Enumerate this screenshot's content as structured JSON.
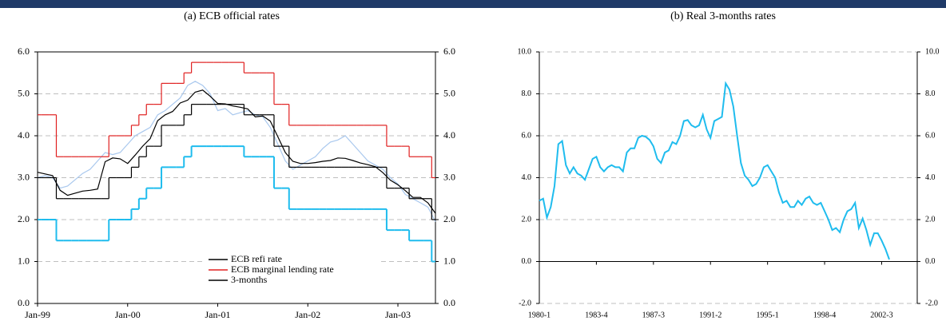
{
  "chart_data": [
    {
      "type": "line",
      "title": "(a)    ECB official rates",
      "categories": [
        "Jan-99",
        null,
        null,
        null,
        null,
        null,
        null,
        null,
        null,
        null,
        null,
        null,
        "Jan-00",
        null,
        null,
        null,
        null,
        null,
        null,
        null,
        null,
        null,
        null,
        null,
        "Jan-01",
        null,
        null,
        null,
        null,
        null,
        null,
        null,
        null,
        null,
        null,
        null,
        "Jan-02",
        null,
        null,
        null,
        null,
        null,
        null,
        null,
        null,
        null,
        null,
        null,
        "Jan-03",
        null,
        null,
        null,
        null,
        null
      ],
      "ylim": [
        0,
        6
      ],
      "yticks": [
        {
          "value": 0,
          "label": "0.0"
        },
        {
          "value": 1,
          "label": "1.0"
        },
        {
          "value": 2,
          "label": "2.0"
        },
        {
          "value": 3,
          "label": "3.0"
        },
        {
          "value": 4,
          "label": "4.0"
        },
        {
          "value": 5,
          "label": "5.0"
        },
        {
          "value": 6,
          "label": "6.0"
        }
      ],
      "grid": true,
      "legend_loc": "lower center",
      "series": [
        {
          "color": "#a9c8ee",
          "values": [
            3.0,
            3.05,
            3.0,
            2.75,
            2.8,
            2.95,
            3.1,
            3.2,
            3.4,
            3.6,
            3.55,
            3.6,
            3.8,
            4.0,
            4.1,
            4.2,
            4.5,
            4.6,
            4.75,
            4.9,
            5.2,
            5.3,
            5.2,
            5.0,
            4.6,
            4.65,
            4.5,
            4.55,
            4.6,
            4.5,
            4.45,
            4.2,
            3.8,
            3.4,
            3.2,
            3.3,
            3.4,
            3.5,
            3.7,
            3.85,
            3.9,
            4.0,
            3.8,
            3.6,
            3.4,
            3.3,
            3.2,
            3.0,
            2.85,
            2.6,
            2.5,
            2.4,
            2.3,
            1.95
          ]
        },
        {
          "color": "#1fbcee",
          "step": true,
          "values": [
            2,
            2,
            2,
            1.5,
            1.5,
            1.5,
            1.5,
            1.5,
            1.5,
            1.5,
            2,
            2,
            2,
            2.25,
            2.5,
            2.75,
            2.75,
            3.25,
            3.25,
            3.25,
            3.5,
            3.75,
            3.75,
            3.75,
            3.75,
            3.75,
            3.75,
            3.75,
            3.5,
            3.5,
            3.5,
            3.5,
            2.75,
            2.75,
            2.25,
            2.25,
            2.25,
            2.25,
            2.25,
            2.25,
            2.25,
            2.25,
            2.25,
            2.25,
            2.25,
            2.25,
            2.25,
            1.75,
            1.75,
            1.75,
            1.5,
            1.5,
            1.5,
            1
          ]
        },
        {
          "name": "ECB refi rate",
          "color": "#000000",
          "step": true,
          "values": [
            3,
            3,
            3,
            2.5,
            2.5,
            2.5,
            2.5,
            2.5,
            2.5,
            2.5,
            3,
            3,
            3,
            3.25,
            3.5,
            3.75,
            3.75,
            4.25,
            4.25,
            4.25,
            4.5,
            4.75,
            4.75,
            4.75,
            4.75,
            4.75,
            4.75,
            4.75,
            4.5,
            4.5,
            4.5,
            4.5,
            3.75,
            3.75,
            3.25,
            3.25,
            3.25,
            3.25,
            3.25,
            3.25,
            3.25,
            3.25,
            3.25,
            3.25,
            3.25,
            3.25,
            3.25,
            2.75,
            2.75,
            2.75,
            2.5,
            2.5,
            2.5,
            2
          ]
        },
        {
          "name": "ECB marginal lending rate",
          "color": "#e02020",
          "step": true,
          "values": [
            4.5,
            4.5,
            4.5,
            3.5,
            3.5,
            3.5,
            3.5,
            3.5,
            3.5,
            3.5,
            4,
            4,
            4,
            4.25,
            4.5,
            4.75,
            4.75,
            5.25,
            5.25,
            5.25,
            5.5,
            5.75,
            5.75,
            5.75,
            5.75,
            5.75,
            5.75,
            5.75,
            5.5,
            5.5,
            5.5,
            5.5,
            4.75,
            4.75,
            4.25,
            4.25,
            4.25,
            4.25,
            4.25,
            4.25,
            4.25,
            4.25,
            4.25,
            4.25,
            4.25,
            4.25,
            4.25,
            3.75,
            3.75,
            3.75,
            3.5,
            3.5,
            3.5,
            3
          ]
        },
        {
          "name": "3-months",
          "color": "#000000",
          "values": [
            3.13,
            3.09,
            3.05,
            2.7,
            2.58,
            2.63,
            2.68,
            2.7,
            2.73,
            3.38,
            3.47,
            3.45,
            3.34,
            3.54,
            3.75,
            3.93,
            4.36,
            4.5,
            4.58,
            4.78,
            4.85,
            5.04,
            5.09,
            4.94,
            4.77,
            4.76,
            4.71,
            4.68,
            4.64,
            4.45,
            4.47,
            4.35,
            3.98,
            3.6,
            3.39,
            3.34,
            3.34,
            3.36,
            3.39,
            3.41,
            3.47,
            3.46,
            3.41,
            3.35,
            3.31,
            3.26,
            3.12,
            2.94,
            2.83,
            2.69,
            2.53,
            2.53,
            2.4,
            2.15
          ]
        }
      ]
    },
    {
      "type": "line",
      "title": "(b)  Real 3-months rates",
      "categories": [
        "1980-1",
        null,
        null,
        null,
        null,
        null,
        null,
        null,
        null,
        null,
        null,
        null,
        null,
        null,
        null,
        "1983-4",
        null,
        null,
        null,
        null,
        null,
        null,
        null,
        null,
        null,
        null,
        null,
        null,
        null,
        null,
        "1987-3",
        null,
        null,
        null,
        null,
        null,
        null,
        null,
        null,
        null,
        null,
        null,
        null,
        null,
        null,
        "1991-2",
        null,
        null,
        null,
        null,
        null,
        null,
        null,
        null,
        null,
        null,
        null,
        null,
        null,
        null,
        "1995-1",
        null,
        null,
        null,
        null,
        null,
        null,
        null,
        null,
        null,
        null,
        null,
        null,
        null,
        null,
        "1998-4",
        null,
        null,
        null,
        null,
        null,
        null,
        null,
        null,
        null,
        null,
        null,
        null,
        null,
        null,
        "2002-3",
        null,
        null
      ],
      "ylim": [
        -2,
        10
      ],
      "yticks": [
        {
          "value": -2,
          "label": "-2.0"
        },
        {
          "value": 0,
          "label": "0.0"
        },
        {
          "value": 2,
          "label": "2.0"
        },
        {
          "value": 4,
          "label": "4.0"
        },
        {
          "value": 6,
          "label": "6.0"
        },
        {
          "value": 8,
          "label": "8.0"
        },
        {
          "value": 10,
          "label": "10.0"
        }
      ],
      "grid": true,
      "series": [
        {
          "color": "#1fbcee",
          "values": [
            2.9,
            3.0,
            2.1,
            2.6,
            3.6,
            5.6,
            5.75,
            4.6,
            4.2,
            4.5,
            4.2,
            4.1,
            3.9,
            4.4,
            4.9,
            5.0,
            4.5,
            4.3,
            4.5,
            4.6,
            4.5,
            4.5,
            4.3,
            5.2,
            5.4,
            5.4,
            5.9,
            6.0,
            5.95,
            5.8,
            5.5,
            4.9,
            4.7,
            5.2,
            5.3,
            5.7,
            5.6,
            6.0,
            6.7,
            6.75,
            6.5,
            6.4,
            6.5,
            7.0,
            6.3,
            5.9,
            6.7,
            6.8,
            6.9,
            8.5,
            8.2,
            7.4,
            6.0,
            4.7,
            4.1,
            3.9,
            3.6,
            3.7,
            4.0,
            4.5,
            4.6,
            4.3,
            4.0,
            3.3,
            2.8,
            2.9,
            2.6,
            2.6,
            2.9,
            2.7,
            3.0,
            3.1,
            2.8,
            2.7,
            2.8,
            2.4,
            2.0,
            1.5,
            1.6,
            1.4,
            2.0,
            2.4,
            2.5,
            2.8,
            1.6,
            2.05,
            1.5,
            0.8,
            1.35,
            1.35,
            1.0,
            0.6,
            0.1
          ]
        }
      ]
    }
  ]
}
